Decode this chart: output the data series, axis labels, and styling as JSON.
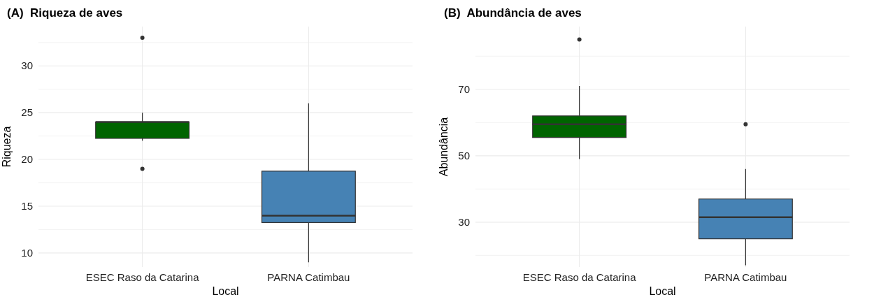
{
  "chart_data": [
    {
      "type": "box",
      "title": "(A)  Riqueza de aves",
      "xlabel": "Local",
      "ylabel": "Riqueza",
      "categories": [
        "ESEC Raso da Catarina",
        "PARNA Catimbau"
      ],
      "colors": [
        "#006400",
        "#4682b4"
      ],
      "boxes": [
        {
          "low": 22,
          "q1": 22.25,
          "median": 24,
          "q3": 24,
          "high": 25,
          "outliers": [
            33,
            19
          ]
        },
        {
          "low": 9,
          "q1": 13.25,
          "median": 14,
          "q3": 18.75,
          "high": 26
        }
      ],
      "ylim": [
        8.5,
        34.2
      ],
      "yticks": [
        10,
        {
          "value": 12.5,
          "label": null
        },
        15,
        {
          "value": 17.5,
          "label": null
        },
        20,
        {
          "value": 22.5,
          "label": null
        },
        25,
        {
          "value": 27.5,
          "label": null
        },
        30,
        {
          "value": 32.5,
          "label": null
        }
      ],
      "grid": true
    },
    {
      "type": "box",
      "title": "(B)  Abundância de aves",
      "xlabel": "Local",
      "ylabel": "Abundância",
      "categories": [
        "ESEC Raso da Catarina",
        "PARNA Catimbau"
      ],
      "colors": [
        "#006400",
        "#4682b4"
      ],
      "boxes": [
        {
          "low": 49,
          "q1": 55.5,
          "median": 59.5,
          "q3": 62,
          "high": 71,
          "outliers": [
            85
          ]
        },
        {
          "low": 17,
          "q1": 25,
          "median": 31.5,
          "q3": 37,
          "high": 46,
          "outliers": [
            59.5
          ]
        }
      ],
      "ylim": [
        16.5,
        88.9
      ],
      "yticks": [
        {
          "value": 20,
          "label": null
        },
        30,
        {
          "value": 40,
          "label": null
        },
        50,
        {
          "value": 60,
          "label": null
        },
        70,
        {
          "value": 80,
          "label": null
        }
      ],
      "grid": true
    }
  ]
}
